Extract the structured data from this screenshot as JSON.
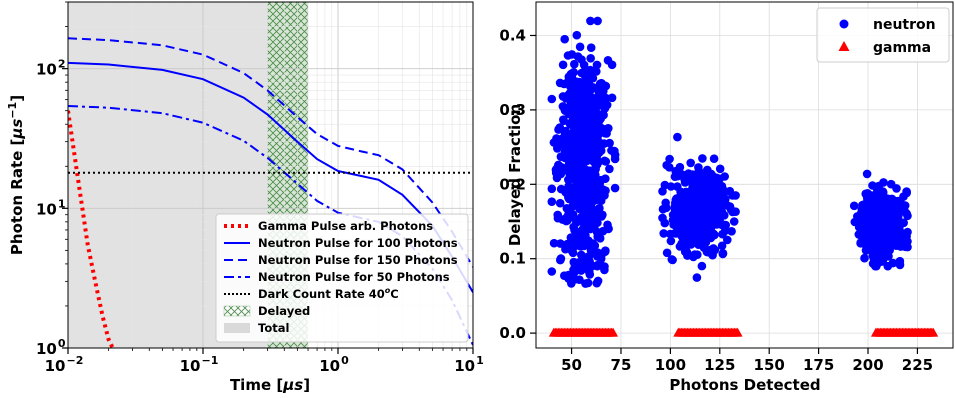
{
  "chart_data": [
    {
      "type": "line",
      "xlabel": "Time [μs]",
      "ylabel": "Photon Rate [μs⁻¹]",
      "xscale": "log",
      "yscale": "log",
      "xlim": [
        0.01,
        10
      ],
      "ylim": [
        1,
        300
      ],
      "x_tick_labels": [
        {
          "value": 0.01,
          "base": "10",
          "exp": "−2"
        },
        {
          "value": 0.1,
          "base": "10",
          "exp": "−1"
        },
        {
          "value": 1,
          "base": "10",
          "exp": "0"
        },
        {
          "value": 10,
          "base": "10",
          "exp": "1"
        }
      ],
      "y_tick_labels": [
        {
          "value": 1,
          "base": "10",
          "exp": "0"
        },
        {
          "value": 10,
          "base": "10",
          "exp": "1"
        },
        {
          "value": 100,
          "base": "10",
          "exp": "2"
        }
      ],
      "grid": true,
      "legend_position": "lower-right",
      "series": [
        {
          "name": "Gamma Pulse arb. Photons",
          "color": "#ff0000",
          "style": "dotted",
          "x": [
            0.01,
            0.012,
            0.014,
            0.016,
            0.018,
            0.02,
            0.022
          ],
          "y": [
            50,
            15,
            5.5,
            2.9,
            1.7,
            1.15,
            0.95
          ]
        },
        {
          "name": "Neutron Pulse for 100 Photons",
          "color": "#0000ff",
          "style": "solid",
          "x": [
            0.01,
            0.02,
            0.05,
            0.1,
            0.2,
            0.3,
            0.5,
            0.7,
            1,
            1.5,
            2,
            3,
            5,
            7,
            10
          ],
          "y": [
            110,
            107,
            98,
            84,
            62,
            47,
            30,
            22.5,
            18.5,
            17,
            16,
            12.5,
            7.5,
            4.5,
            2.5
          ]
        },
        {
          "name": "Neutron Pulse for 150 Photons",
          "color": "#0000ff",
          "style": "dashed",
          "x": [
            0.01,
            0.02,
            0.05,
            0.1,
            0.2,
            0.3,
            0.5,
            0.7,
            1,
            1.5,
            2,
            3,
            5,
            7,
            10
          ],
          "y": [
            165,
            160,
            147,
            126,
            93,
            70,
            45,
            34,
            28,
            25.5,
            24,
            19,
            11,
            6.8,
            3.8
          ]
        },
        {
          "name": "Neutron Pulse for 50 Photons",
          "color": "#0000ff",
          "style": "dashdot",
          "x": [
            0.01,
            0.02,
            0.05,
            0.1,
            0.2,
            0.3,
            0.5,
            0.7,
            1,
            1.5,
            2,
            3,
            5,
            7,
            10
          ],
          "y": [
            54,
            52.5,
            48,
            41,
            30.5,
            23,
            15,
            11.3,
            9.3,
            8.5,
            8,
            6.3,
            3.7,
            2.2,
            1.05
          ]
        },
        {
          "name": "Dark Count Rate 40°C",
          "color": "#000000",
          "style": "dotted",
          "x": [
            0.01,
            10
          ],
          "y": [
            18,
            18
          ]
        }
      ],
      "regions": [
        {
          "name": "Delayed",
          "x": [
            0.3,
            0.6
          ],
          "fill": "hatch",
          "color": "#2e7d32"
        },
        {
          "name": "Total",
          "x": [
            0.01,
            0.6
          ],
          "fill": "solid",
          "color": "#d3d3d3"
        }
      ]
    },
    {
      "type": "scatter",
      "xlabel": "Photons Detected",
      "ylabel": "Delayed Fraction",
      "xlim": [
        32,
        243
      ],
      "ylim": [
        -0.02,
        0.445
      ],
      "x_ticks": [
        50,
        75,
        100,
        125,
        150,
        175,
        200,
        225
      ],
      "y_ticks": [
        0.0,
        0.1,
        0.2,
        0.3,
        0.4
      ],
      "x_tick_labels": [
        "50",
        "75",
        "100",
        "125",
        "150",
        "175",
        "200",
        "225"
      ],
      "y_tick_labels": [
        "0.0",
        "0.1",
        "0.2",
        "0.3",
        "0.4"
      ],
      "grid": true,
      "legend_position": "top-right",
      "series": [
        {
          "name": "neutron",
          "marker": "circle",
          "color": "#0000ff",
          "clusters": [
            {
              "x_range": [
                40,
                72
              ],
              "y_center": 0.255,
              "y_spread": 0.055,
              "y_min": 0.035,
              "y_max": 0.425
            },
            {
              "x_range": [
                96,
                133
              ],
              "y_center": 0.165,
              "y_spread": 0.028,
              "y_min": 0.065,
              "y_max": 0.282
            },
            {
              "x_range": [
                193,
                220
              ],
              "y_center": 0.145,
              "y_spread": 0.022,
              "y_min": 0.09,
              "y_max": 0.225
            }
          ]
        },
        {
          "name": "gamma",
          "marker": "triangle",
          "color": "#ff0000",
          "clusters": [
            {
              "x_range": [
                41,
                71
              ],
              "y": 0.0
            },
            {
              "x_range": [
                104,
                134
              ],
              "y": 0.0
            },
            {
              "x_range": [
                204,
                233
              ],
              "y": 0.0
            }
          ]
        }
      ]
    }
  ]
}
